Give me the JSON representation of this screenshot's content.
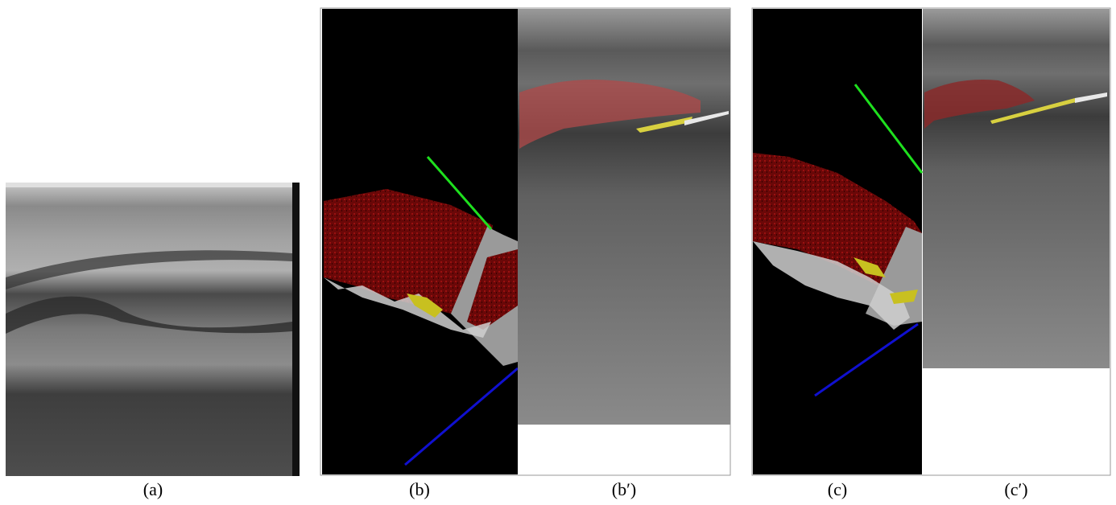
{
  "panels": [
    {
      "label": "(a)"
    },
    {
      "label": "(b)"
    },
    {
      "label": "(b′)"
    },
    {
      "label": "(c)"
    },
    {
      "label": "(c′)"
    }
  ]
}
